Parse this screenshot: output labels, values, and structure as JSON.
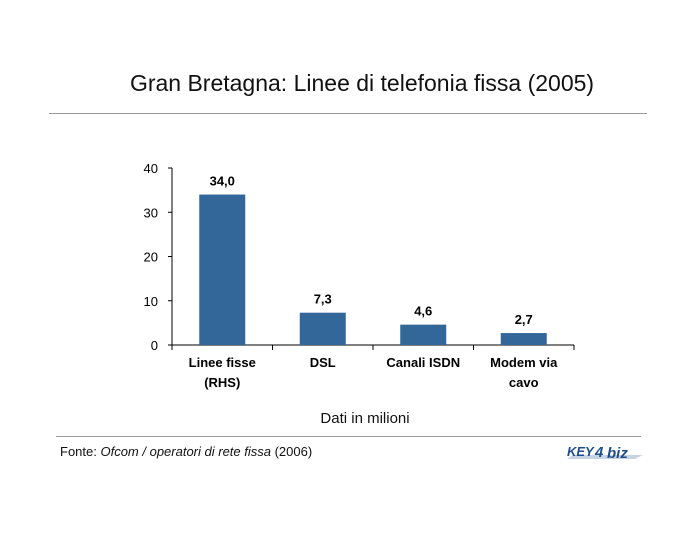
{
  "title": "Gran Bretagna: Linee di telefonia fissa (2005)",
  "chart_data": {
    "type": "bar",
    "categories": [
      [
        "Linee fisse",
        "(RHS)"
      ],
      [
        "DSL"
      ],
      [
        "Canali ISDN"
      ],
      [
        "Modem via",
        "cavo"
      ]
    ],
    "values": [
      34.0,
      7.3,
      4.6,
      2.7
    ],
    "data_labels": [
      "34,0",
      "7,3",
      "4,6",
      "2,7"
    ],
    "yticks": [
      0,
      10,
      20,
      30,
      40
    ],
    "ylim": [
      0,
      40
    ],
    "xlabel": "Dati in milioni",
    "bar_color": "#336699",
    "grid": false
  },
  "source": {
    "prefix": "Fonte: ",
    "italic": "Ofcom / operatori di rete fissa",
    "suffix": " (2006)"
  },
  "logo": {
    "text": "KEY4biz",
    "color": "#1f4f8a"
  }
}
